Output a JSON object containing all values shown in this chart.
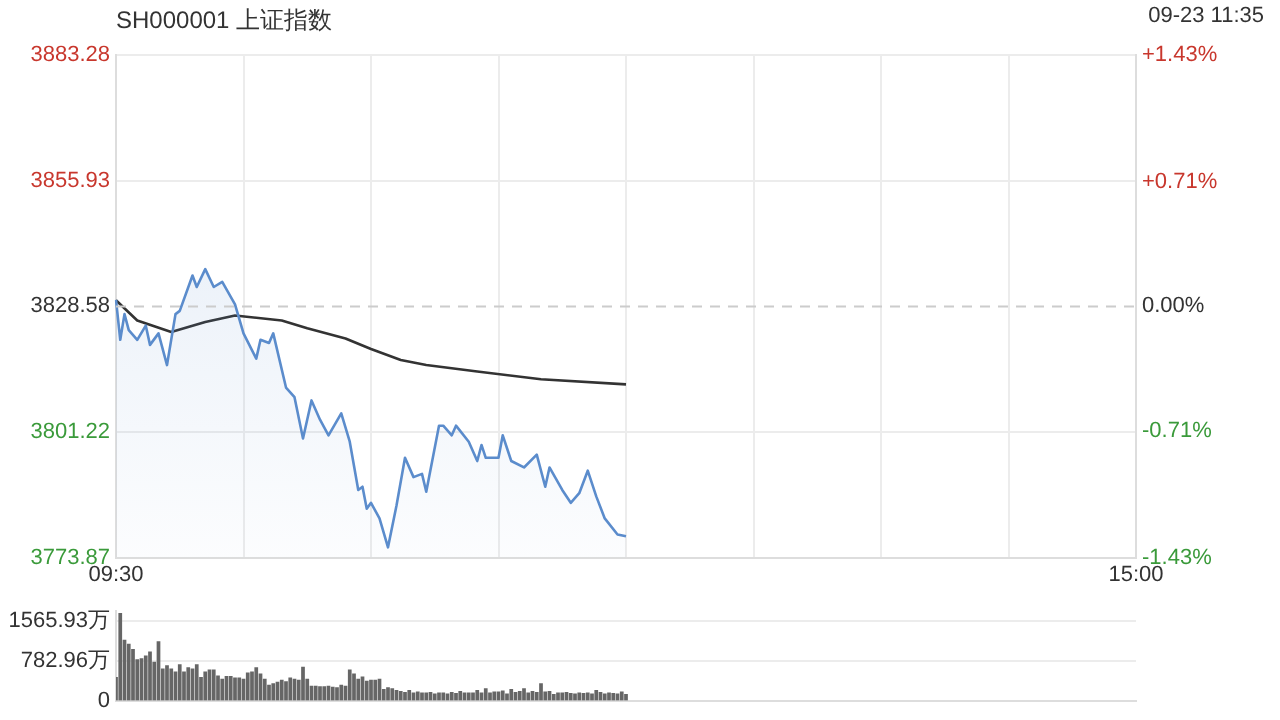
{
  "chart_data": [
    {
      "type": "line",
      "title": "SH000001 上证指数",
      "subtitle": "09-23 11:35",
      "categories": [
        "09:30",
        null,
        null,
        null,
        null,
        null,
        null,
        null,
        null,
        null,
        null,
        null,
        null,
        null,
        null,
        null,
        null,
        null,
        null,
        null,
        null,
        null,
        null,
        null,
        null,
        null,
        null,
        null,
        null,
        null,
        null,
        null,
        null,
        null,
        null,
        null,
        null,
        null,
        null,
        null,
        null,
        null,
        null,
        null,
        null,
        null,
        null,
        null,
        null,
        null,
        null,
        null,
        null,
        null,
        null,
        null,
        null,
        null,
        null,
        null,
        null,
        null,
        null,
        null,
        null,
        null,
        null,
        null,
        null,
        null,
        null,
        null,
        null,
        null,
        null,
        null,
        null,
        null,
        null,
        null,
        null,
        null,
        null,
        null,
        null,
        null,
        null,
        null,
        null,
        null,
        null,
        null,
        null,
        null,
        null,
        null,
        null,
        null,
        null,
        null,
        null,
        null,
        null,
        null,
        null,
        null,
        null,
        null,
        null,
        null,
        null,
        null,
        null,
        null,
        null,
        null,
        null,
        null,
        null,
        null,
        null,
        null,
        null,
        null,
        null,
        null,
        null,
        null,
        null,
        null,
        null,
        null,
        null,
        null,
        null,
        null,
        null,
        null,
        null,
        null,
        null,
        null,
        null,
        null,
        null,
        null,
        null,
        null,
        null,
        null,
        null,
        null,
        null,
        null,
        null,
        null,
        null,
        null,
        null,
        null,
        null,
        null,
        null,
        null,
        null,
        null,
        null,
        null,
        null,
        null,
        null,
        null,
        null,
        null,
        null,
        null,
        null,
        null,
        null,
        null,
        null,
        null,
        null,
        null,
        null,
        null,
        null,
        null,
        null,
        null,
        null,
        null,
        null,
        null,
        null,
        null,
        null,
        null,
        null,
        null,
        null,
        null,
        null,
        null,
        null,
        null,
        null,
        null,
        null,
        null,
        null,
        null,
        null,
        null,
        null,
        null,
        null,
        null,
        null,
        null,
        null,
        null,
        null,
        null,
        null,
        null,
        null,
        null,
        null,
        null,
        null,
        null,
        null,
        null,
        null,
        null,
        null,
        null,
        null,
        null,
        "15:00"
      ],
      "series": [
        {
          "type": "area",
          "color": "#5b8ccc",
          "values": [
            3830.0,
            3821.3,
            3826.9,
            3823.4,
            null,
            3821.3,
            null,
            3824.4,
            3820.2,
            null,
            3822.7,
            null,
            3815.8,
            null,
            3826.9,
            3827.6,
            null,
            null,
            3835.3,
            3832.8,
            null,
            3836.7,
            null,
            3832.8,
            null,
            3833.9,
            null,
            null,
            3829.0,
            null,
            3822.7,
            null,
            null,
            3817.2,
            3821.3,
            null,
            3820.6,
            3822.7,
            null,
            null,
            3810.9,
            null,
            3808.8,
            null,
            3799.8,
            null,
            3808.1,
            null,
            3803.9,
            null,
            3800.5,
            null,
            null,
            3805.3,
            null,
            3799.1,
            null,
            3788.6,
            3789.3,
            3784.5,
            3785.8,
            null,
            3782.4,
            null,
            3776.1,
            null,
            3785.2,
            null,
            3795.6,
            null,
            3791.4,
            null,
            3792.1,
            3788.2,
            null,
            null,
            3802.6,
            3802.6,
            null,
            3800.5,
            3802.6,
            null,
            null,
            3799.1,
            null,
            3794.9,
            3798.4,
            3795.6,
            null,
            null,
            3795.6,
            3800.5,
            null,
            3794.9,
            null,
            null,
            3793.5,
            null,
            null,
            3796.3,
            null,
            3789.3,
            3793.5,
            null,
            null,
            3788.6,
            null,
            3785.8,
            null,
            3787.9,
            null,
            3792.8,
            null,
            3787.2,
            null,
            3782.4,
            null,
            null,
            3778.9,
            null,
            3778.5,
            null,
            null,
            null,
            null,
            null,
            null,
            null,
            null,
            null,
            null,
            null,
            null,
            null,
            null,
            null,
            null,
            null,
            null,
            null,
            null,
            null,
            null,
            null,
            null,
            null,
            null,
            null,
            null,
            null,
            null,
            null,
            null,
            null,
            null,
            null,
            null,
            null,
            null,
            null,
            null,
            null,
            null,
            null,
            null,
            null,
            null,
            null,
            null,
            null,
            null,
            null,
            null,
            null,
            null,
            null,
            null,
            null,
            null,
            null,
            null,
            null,
            null,
            null,
            null,
            null,
            null,
            null,
            null,
            null,
            null,
            null,
            null,
            null,
            null,
            null,
            null,
            null,
            null,
            null,
            null,
            null,
            null,
            null,
            null,
            null,
            null,
            null,
            null,
            null,
            null,
            null,
            null,
            null,
            null,
            null,
            null,
            null,
            null,
            null,
            null,
            null,
            null,
            null,
            null,
            null,
            null,
            null,
            null,
            null,
            null,
            null,
            null,
            null,
            null,
            null,
            null,
            null,
            null,
            null,
            null
          ]
        },
        {
          "type": "line",
          "color": "#333333",
          "values": [
            3829.9,
            null,
            null,
            null,
            null,
            3825.5,
            null,
            null,
            null,
            null,
            null,
            null,
            null,
            3823.0,
            null,
            null,
            null,
            null,
            null,
            null,
            null,
            3825.2,
            null,
            null,
            null,
            null,
            null,
            null,
            3826.6,
            null,
            null,
            null,
            null,
            null,
            null,
            null,
            null,
            null,
            null,
            3825.5,
            null,
            null,
            null,
            null,
            null,
            3823.8,
            null,
            null,
            null,
            null,
            null,
            null,
            null,
            null,
            3821.6,
            null,
            null,
            null,
            null,
            null,
            3819.3,
            null,
            null,
            null,
            null,
            null,
            null,
            3816.9,
            null,
            null,
            null,
            null,
            null,
            3815.8,
            null,
            null,
            null,
            null,
            null,
            null,
            null,
            null,
            null,
            null,
            null,
            3814.4,
            null,
            null,
            null,
            null,
            null,
            null,
            null,
            null,
            null,
            null,
            null,
            null,
            null,
            null,
            3812.7,
            null,
            null,
            null,
            null,
            null,
            null,
            null,
            null,
            null,
            null,
            null,
            null,
            null,
            null,
            null,
            null,
            null,
            null,
            null,
            3811.6,
            null,
            null,
            null,
            null,
            null,
            null,
            null,
            null,
            null,
            null,
            null,
            null,
            null,
            null,
            null,
            null,
            null,
            null,
            null,
            null,
            null,
            null,
            null,
            null,
            null,
            null,
            null,
            null,
            null,
            null,
            null,
            null,
            null,
            null,
            null,
            null,
            null,
            null,
            null,
            null,
            null,
            null,
            null,
            null,
            null,
            null,
            null,
            null,
            null,
            null,
            null,
            null,
            null,
            null,
            null,
            null,
            null,
            null,
            null,
            null,
            null,
            null,
            null,
            null,
            null,
            null,
            null,
            null,
            null,
            null,
            null,
            null,
            null,
            null,
            null,
            null,
            null,
            null,
            null,
            null,
            null,
            null,
            null,
            null,
            null,
            null,
            null,
            null,
            null,
            null,
            null,
            null,
            null,
            null,
            null,
            null,
            null,
            null,
            null,
            null,
            null,
            null,
            null,
            null,
            null,
            null,
            null,
            null,
            null,
            null,
            null,
            null,
            null,
            null,
            null,
            null,
            null,
            null,
            null,
            null
          ]
        }
      ],
      "ylim": [
        3773.87,
        3883.28
      ],
      "yticks": [
        3773.87,
        3801.22,
        3828.58,
        3855.93,
        3883.28
      ],
      "y2lim": [
        -1.43,
        1.43
      ],
      "y2ticks": [
        {
          "value": -1.43,
          "label": "-1.43%"
        },
        {
          "value": -0.71,
          "label": "-0.71%"
        },
        {
          "value": 0,
          "label": "0.00%"
        },
        {
          "value": 0.71,
          "label": "+0.71%"
        },
        {
          "value": 1.43,
          "label": "+1.43%"
        }
      ],
      "grid": true,
      "ref_lines": [
        {
          "axis": "y",
          "value": 3828.58,
          "line_style": "dashed",
          "color": "#cccccc"
        }
      ]
    },
    {
      "type": "bar",
      "color": "#666666",
      "categories": [
        null,
        null,
        null,
        null,
        null,
        null,
        null,
        null,
        null,
        null,
        null,
        null,
        null,
        null,
        null,
        null,
        null,
        null,
        null,
        null,
        null,
        null,
        null,
        null,
        null,
        null,
        null,
        null,
        null,
        null,
        null,
        null,
        null,
        null,
        null,
        null,
        null,
        null,
        null,
        null,
        null,
        null,
        null,
        null,
        null,
        null,
        null,
        null,
        null,
        null,
        null,
        null,
        null,
        null,
        null,
        null,
        null,
        null,
        null,
        null,
        null,
        null,
        null,
        null,
        null,
        null,
        null,
        null,
        null,
        null,
        null,
        null,
        null,
        null,
        null,
        null,
        null,
        null,
        null,
        null,
        null,
        null,
        null,
        null,
        null,
        null,
        null,
        null,
        null,
        null,
        null,
        null,
        null,
        null,
        null,
        null,
        null,
        null,
        null,
        null,
        null,
        null,
        null,
        null,
        null,
        null,
        null,
        null,
        null,
        null,
        null,
        null,
        null,
        null,
        null,
        null,
        null,
        null,
        null,
        null,
        null,
        null,
        null,
        null,
        null,
        null,
        null,
        null,
        null,
        null,
        null,
        null,
        null,
        null,
        null,
        null,
        null,
        null,
        null,
        null,
        null,
        null,
        null,
        null,
        null,
        null,
        null,
        null,
        null,
        null,
        null,
        null,
        null,
        null,
        null,
        null,
        null,
        null,
        null,
        null,
        null,
        null,
        null,
        null,
        null,
        null,
        null,
        null,
        null,
        null,
        null,
        null,
        null,
        null,
        null,
        null,
        null,
        null,
        null,
        null,
        null,
        null,
        null,
        null,
        null,
        null,
        null,
        null,
        null,
        null,
        null,
        null,
        null,
        null,
        null,
        null,
        null,
        null,
        null,
        null,
        null,
        null,
        null,
        null,
        null,
        null,
        null,
        null,
        null,
        null,
        null,
        null,
        null,
        null,
        null,
        null,
        null,
        null,
        null,
        null,
        null,
        null,
        null,
        null,
        null,
        null,
        null,
        null,
        null,
        null,
        null,
        null,
        null,
        null,
        null,
        null,
        null,
        null,
        null,
        null,
        null
      ],
      "values": [
        450,
        1700,
        1180,
        1100,
        1000,
        800,
        820,
        870,
        950,
        750,
        1150,
        620,
        680,
        620,
        560,
        700,
        560,
        640,
        620,
        700,
        450,
        560,
        600,
        600,
        480,
        420,
        470,
        470,
        440,
        440,
        420,
        540,
        560,
        640,
        520,
        420,
        300,
        330,
        360,
        400,
        370,
        440,
        420,
        400,
        650,
        420,
        280,
        280,
        270,
        270,
        280,
        260,
        250,
        300,
        280,
        600,
        520,
        420,
        460,
        380,
        400,
        400,
        420,
        220,
        250,
        230,
        200,
        180,
        160,
        200,
        150,
        170,
        150,
        150,
        160,
        130,
        150,
        150,
        130,
        160,
        140,
        180,
        150,
        150,
        150,
        200,
        150,
        230,
        150,
        170,
        170,
        190,
        130,
        220,
        160,
        180,
        230,
        150,
        180,
        160,
        330,
        170,
        180,
        120,
        150,
        150,
        160,
        140,
        130,
        150,
        140,
        150,
        130,
        200,
        160,
        130,
        150,
        140,
        130,
        170,
        120,
        null,
        null,
        null,
        null,
        null,
        null,
        null,
        null,
        null,
        null,
        null,
        null,
        null,
        null,
        null,
        null,
        null,
        null,
        null,
        null,
        null,
        null,
        null,
        null,
        null,
        null,
        null,
        null,
        null,
        null,
        null,
        null,
        null,
        null,
        null,
        null,
        null,
        null,
        null,
        null,
        null,
        null,
        null,
        null,
        null,
        null,
        null,
        null,
        null,
        null,
        null,
        null,
        null,
        null,
        null,
        null,
        null,
        null,
        null,
        null,
        null,
        null,
        null,
        null,
        null,
        null,
        null,
        null,
        null,
        null,
        null,
        null,
        null,
        null,
        null,
        null,
        null,
        null,
        null,
        null,
        null,
        null,
        null,
        null,
        null,
        null,
        null,
        null,
        null,
        null,
        null,
        null,
        null,
        null,
        null,
        null,
        null,
        null,
        null,
        null,
        null,
        null,
        null,
        null,
        null,
        null,
        null,
        null,
        null,
        null,
        null,
        null,
        null,
        null,
        null,
        null,
        null,
        null,
        null,
        null
      ],
      "ylim": [
        0,
        1750
      ],
      "yticks": [
        0,
        {
          "value": 782.96,
          "label": "782.96万"
        },
        {
          "value": 1565.93,
          "label": "1565.93万"
        }
      ],
      "grid": "y",
      "tick_labels": "y"
    }
  ]
}
